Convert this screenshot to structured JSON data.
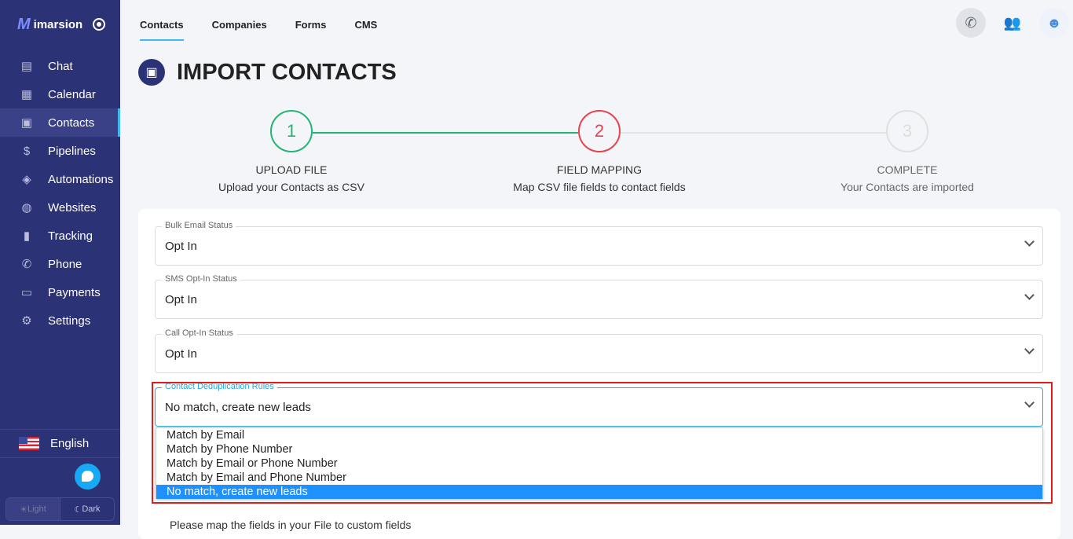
{
  "sidebar": {
    "brand": "imarsion",
    "items": [
      {
        "label": "Chat",
        "icon": "chat-icon"
      },
      {
        "label": "Calendar",
        "icon": "calendar-icon"
      },
      {
        "label": "Contacts",
        "icon": "contacts-icon",
        "active": true
      },
      {
        "label": "Pipelines",
        "icon": "dollar-icon"
      },
      {
        "label": "Automations",
        "icon": "automation-icon"
      },
      {
        "label": "Websites",
        "icon": "globe-icon"
      },
      {
        "label": "Tracking",
        "icon": "bar-chart-icon"
      },
      {
        "label": "Phone",
        "icon": "phone-icon"
      },
      {
        "label": "Payments",
        "icon": "credit-card-icon"
      },
      {
        "label": "Settings",
        "icon": "gear-icon"
      }
    ],
    "language": "English",
    "theme": {
      "light": "Light",
      "dark": "Dark"
    }
  },
  "tabs": [
    "Contacts",
    "Companies",
    "Forms",
    "CMS"
  ],
  "page_title": "IMPORT CONTACTS",
  "steps": [
    {
      "num": "1",
      "title": "UPLOAD FILE",
      "desc": "Upload your Contacts as CSV",
      "state": "done",
      "color": "#22b573"
    },
    {
      "num": "2",
      "title": "FIELD MAPPING",
      "desc": "Map CSV file fields to contact fields",
      "state": "current",
      "color": "#e8424c"
    },
    {
      "num": "3",
      "title": "COMPLETE",
      "desc": "Your Contacts are imported",
      "state": "pending",
      "color": "#dcdcdc"
    }
  ],
  "fields": [
    {
      "label": "Bulk Email Status",
      "value": "Opt In"
    },
    {
      "label": "SMS Opt-In Status",
      "value": "Opt In"
    },
    {
      "label": "Call Opt-In Status",
      "value": "Opt In"
    },
    {
      "label": "Contact Deduplication Rules",
      "value": "No match, create new leads"
    }
  ],
  "dedup_options": [
    "Match by Email",
    "Match by Phone Number",
    "Match by Email or Phone Number",
    "Match by Email and Phone Number",
    "No match, create new leads"
  ],
  "hint": "Please map the fields in your File to custom fields"
}
